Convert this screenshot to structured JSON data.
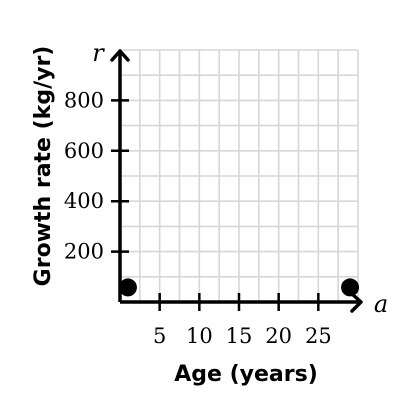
{
  "chart_data": {
    "type": "scatter",
    "xlabel": "Age (years)",
    "ylabel": "Growth rate (kg/yr)",
    "x_variable": "a",
    "y_variable": "r",
    "xlim": [
      0,
      30
    ],
    "ylim": [
      0,
      1000
    ],
    "x_ticks": [
      5,
      10,
      15,
      20,
      25
    ],
    "y_ticks": [
      200,
      400,
      600,
      800
    ],
    "x_tick_labels": [
      "5",
      "10",
      "15",
      "20",
      "25"
    ],
    "y_tick_labels": [
      "200",
      "400",
      "600",
      "800"
    ],
    "grid": true,
    "points": [
      {
        "x": 1,
        "y": 50
      },
      {
        "x": 29,
        "y": 50
      }
    ]
  }
}
